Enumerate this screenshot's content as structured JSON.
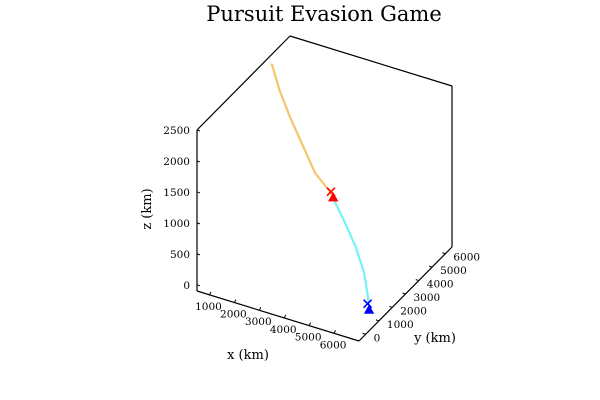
{
  "chart_data": {
    "type": "line",
    "projection": "3d",
    "title": "Pursuit Evasion Game",
    "xlabel": "x (km)",
    "ylabel": "y (km)",
    "zlabel": "z (km)",
    "xlim": [
      500,
      7000
    ],
    "ylim": [
      -500,
      6500
    ],
    "zlim": [
      -100,
      2500
    ],
    "grid": false,
    "legend": "none",
    "x_ticks": [
      "1000",
      "2000",
      "3000",
      "4000",
      "5000",
      "6000"
    ],
    "y_ticks": [
      "0",
      "1000",
      "2000",
      "3000",
      "4000",
      "5000",
      "6000"
    ],
    "z_ticks": [
      "0",
      "500",
      "1000",
      "1500",
      "2000",
      "2500"
    ],
    "series": [
      {
        "color": "#f6c46a",
        "x": [
          600,
          1300,
          2100,
          3000,
          3800,
          4550,
          4700
        ],
        "y": [
          4950,
          4200,
          3500,
          2800,
          2200,
          1900,
          1800
        ],
        "z": [
          2390,
          2230,
          2040,
          1830,
          1630,
          1490,
          1470
        ]
      },
      {
        "color": "#76f2f6",
        "x": [
          4720,
          5300,
          5900,
          6400,
          6700,
          6850
        ],
        "y": [
          1750,
          1550,
          1300,
          1000,
          720,
          550
        ],
        "z": [
          1470,
          1190,
          900,
          610,
          340,
          180
        ]
      }
    ],
    "markers": [
      {
        "symbol": "x",
        "color": "#ff0000",
        "x": 4650,
        "y": 1800,
        "z": 1520
      },
      {
        "symbol": "triangle",
        "color": "#ff0000",
        "x": 4750,
        "y": 1780,
        "z": 1445
      },
      {
        "symbol": "x",
        "color": "#0000ff",
        "x": 6780,
        "y": 560,
        "z": 245
      },
      {
        "symbol": "triangle",
        "color": "#0000ff",
        "x": 6850,
        "y": 540,
        "z": 160
      }
    ]
  }
}
